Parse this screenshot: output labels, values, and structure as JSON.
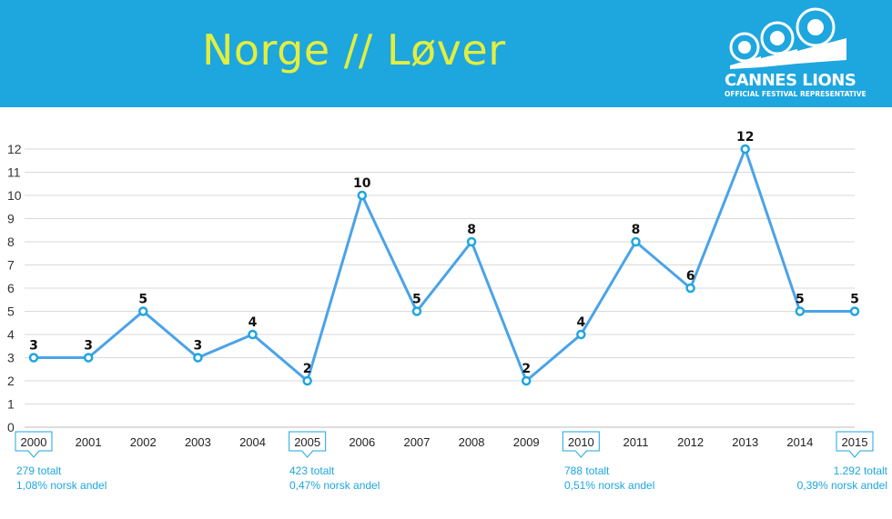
{
  "header": {
    "title": "Norge // Løver",
    "logo_name": "CANNES LIONS",
    "logo_subtitle": "OFFICIAL FESTIVAL REPRESENTATIVE",
    "background_color": "#1ea6df",
    "title_color": "#e3ee3d"
  },
  "chart_data": {
    "type": "line",
    "title": "Norge // Løver",
    "categories": [
      "2000",
      "2001",
      "2002",
      "2003",
      "2004",
      "2005",
      "2006",
      "2007",
      "2008",
      "2009",
      "2010",
      "2011",
      "2012",
      "2013",
      "2014",
      "2015"
    ],
    "values": [
      3,
      3,
      5,
      3,
      4,
      2,
      10,
      5,
      8,
      2,
      4,
      8,
      6,
      12,
      5,
      5
    ],
    "data_labels": true,
    "highlighted_categories": [
      "2000",
      "2005",
      "2010",
      "2015"
    ],
    "ylim": [
      0,
      12
    ],
    "yticks": [
      0,
      1,
      2,
      3,
      4,
      5,
      6,
      7,
      8,
      9,
      10,
      11,
      12
    ],
    "grid": true,
    "legend": "none",
    "xlabel": "",
    "ylabel": "",
    "line_color": "#4aa3e8",
    "marker_color": "#1ea6df"
  },
  "callouts": [
    {
      "line1": "279 totalt",
      "line2": "1,08% norsk andel"
    },
    {
      "line1": "423 totalt",
      "line2": "0,47% norsk andel"
    },
    {
      "line1": "788 totalt",
      "line2": "0,51% norsk andel"
    },
    {
      "line1": "1.292 totalt",
      "line2": "0,39% norsk andel"
    }
  ]
}
